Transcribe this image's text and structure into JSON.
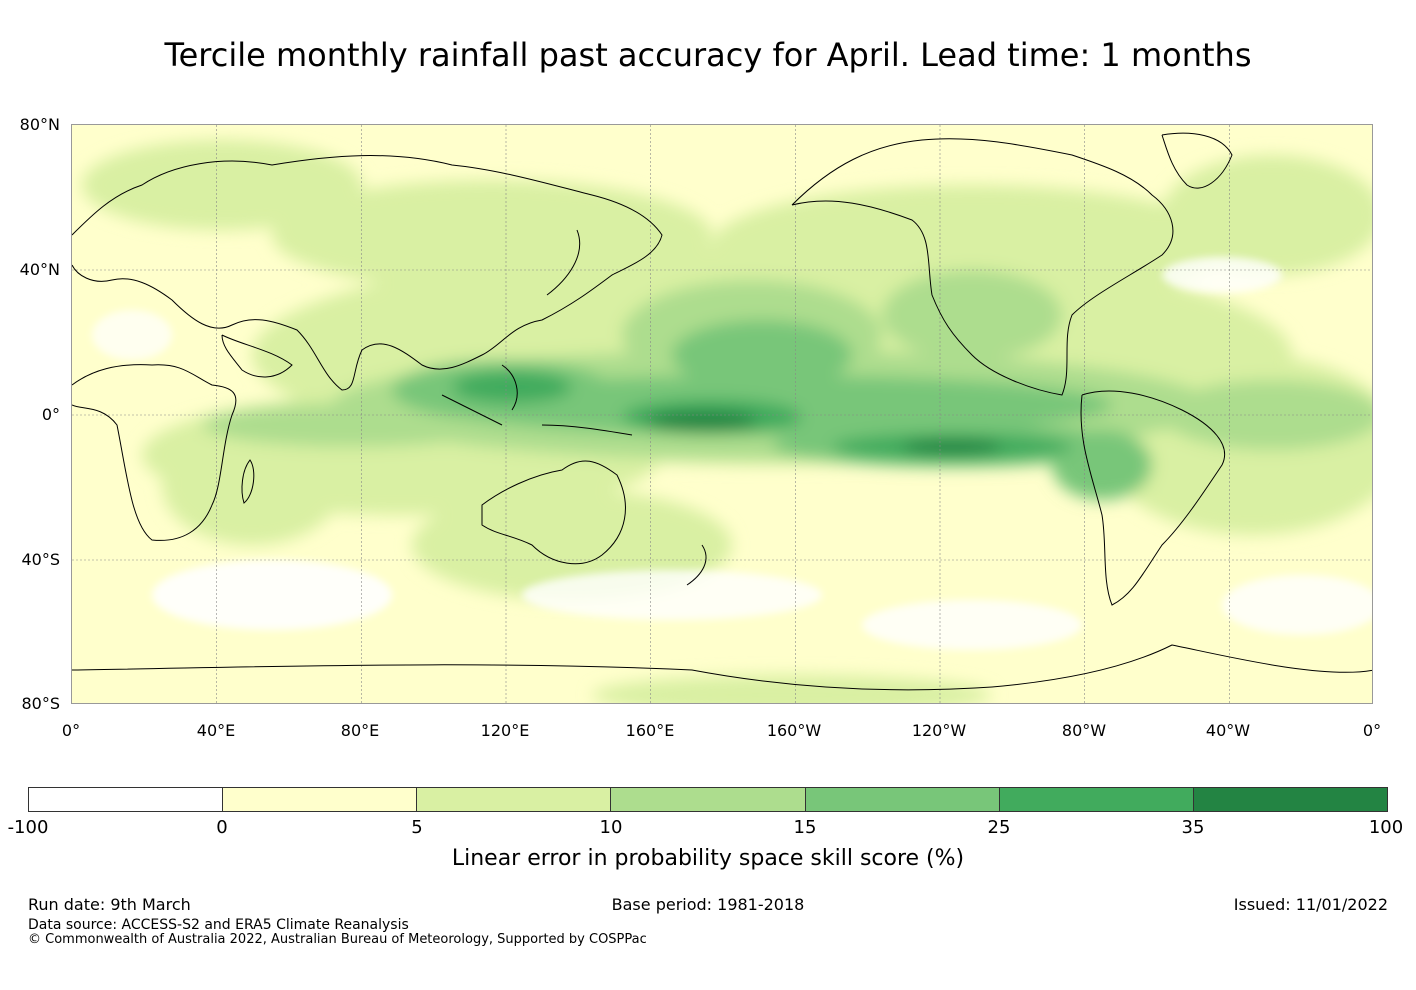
{
  "title": "Tercile monthly rainfall past accuracy for April. Lead time: 1 months",
  "map": {
    "lat_labels": [
      "80°N",
      "40°N",
      "0°",
      "40°S",
      "80°S"
    ],
    "lon_labels": [
      "0°",
      "40°E",
      "80°E",
      "120°E",
      "160°E",
      "160°W",
      "120°W",
      "80°W",
      "40°W",
      "0°"
    ]
  },
  "colorbar": {
    "colors": [
      "#ffffff",
      "#ffffcc",
      "#d9f0a3",
      "#addd8e",
      "#78c679",
      "#41ab5d",
      "#238443"
    ],
    "ticks": [
      "-100",
      "0",
      "5",
      "10",
      "15",
      "25",
      "35",
      "100"
    ],
    "label": "Linear error in probability space skill score (%)"
  },
  "footer": {
    "run_date": "Run date: 9th March",
    "base_period": "Base period: 1981-2018",
    "issued": "Issued: 11/01/2022",
    "data_source": "Data source: ACCESS-S2 and ERA5 Climate Reanalysis",
    "copyright": "© Commonwealth of Australia 2022, Australian Bureau of Meteorology, Supported by COSPPac"
  }
}
